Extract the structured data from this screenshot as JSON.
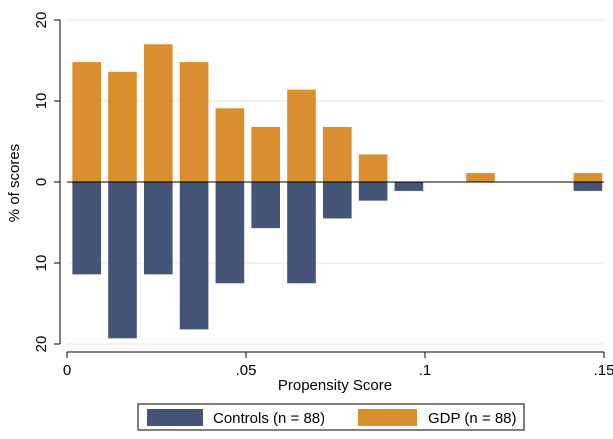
{
  "chart_data": {
    "type": "bar",
    "orientation": "mirrored",
    "xlabel": "Propensity Score",
    "ylabel": "% of scores",
    "xlim": [
      0,
      0.15
    ],
    "ylim": [
      -20,
      20
    ],
    "x_ticks": [
      {
        "value": 0,
        "label": "0"
      },
      {
        "value": 0.05,
        "label": ".05"
      },
      {
        "value": 0.1,
        "label": ".1"
      },
      {
        "value": 0.15,
        "label": ".15"
      }
    ],
    "y_ticks": [
      {
        "value": 20,
        "label": "20"
      },
      {
        "value": 10,
        "label": "10"
      },
      {
        "value": 0,
        "label": "0"
      },
      {
        "value": -10,
        "label": "10"
      },
      {
        "value": -20,
        "label": "20"
      }
    ],
    "bin_width": 0.01,
    "bin_centers": [
      0.0055,
      0.0155,
      0.0255,
      0.0355,
      0.0455,
      0.0555,
      0.0655,
      0.0755,
      0.0855,
      0.0955,
      0.1155,
      0.1455
    ],
    "grid": true,
    "legend_position": "bottom",
    "series": [
      {
        "name": "GDP (n = 88)",
        "direction": "up",
        "color": "#D98F2E",
        "values": [
          14.8,
          13.6,
          17.0,
          14.8,
          9.1,
          6.8,
          11.4,
          6.8,
          3.4,
          0,
          1.1,
          1.1
        ]
      },
      {
        "name": "Controls (n = 88)",
        "direction": "down",
        "color": "#445578",
        "values": [
          11.4,
          19.3,
          11.4,
          18.2,
          12.5,
          5.7,
          12.5,
          4.5,
          2.3,
          1.1,
          0,
          1.1
        ]
      }
    ]
  },
  "legend": {
    "items": [
      {
        "label": "Controls (n = 88)",
        "color": "#445578"
      },
      {
        "label": "GDP (n = 88)",
        "color": "#D98F2E"
      }
    ]
  }
}
